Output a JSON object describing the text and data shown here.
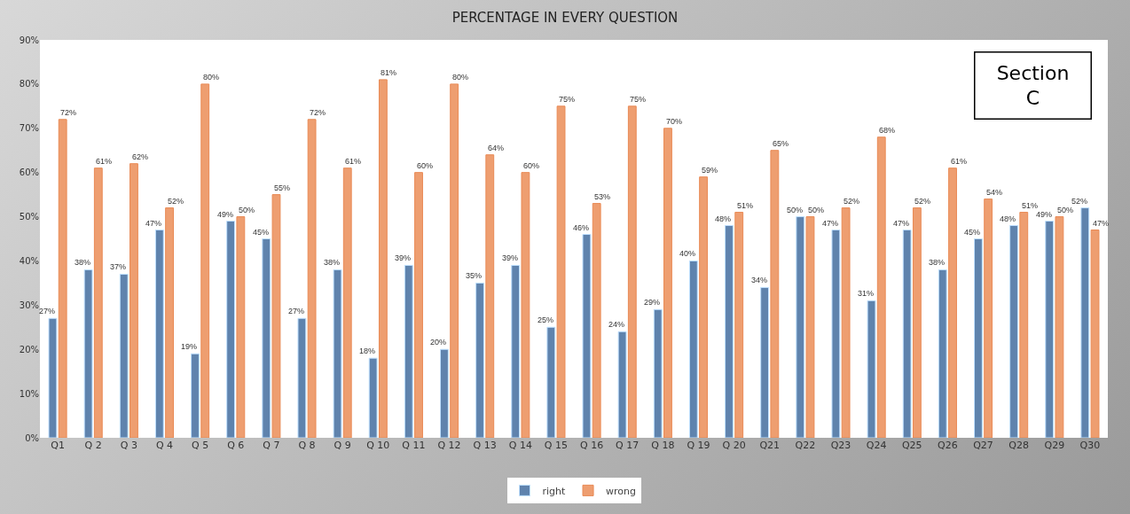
{
  "chart_data": {
    "type": "bar",
    "title": "PERCENTAGE IN EVERY QUESTION",
    "categories": [
      "Q1",
      "Q 2",
      "Q 3",
      "Q 4",
      "Q 5",
      "Q 6",
      "Q 7",
      "Q 8",
      "Q 9",
      "Q 10",
      "Q 11",
      "Q 12",
      "Q 13",
      "Q 14",
      "Q 15",
      "Q 16",
      "Q 17",
      "Q 18",
      "Q 19",
      "Q 20",
      "Q21",
      "Q22",
      "Q23",
      "Q24",
      "Q25",
      "Q26",
      "Q27",
      "Q28",
      "Q29",
      "Q30"
    ],
    "series": [
      {
        "name": "right",
        "color": "#5f83ad",
        "values": [
          27,
          38,
          37,
          47,
          19,
          49,
          45,
          27,
          38,
          18,
          39,
          20,
          35,
          39,
          25,
          46,
          24,
          29,
          40,
          48,
          34,
          50,
          47,
          31,
          47,
          38,
          45,
          48,
          49,
          52
        ],
        "value_labels": [
          "27%",
          "38%",
          "37%",
          "47%",
          "19%",
          "49%",
          "45%",
          "27%",
          "38%",
          "18%",
          "39%",
          "20%",
          "35%",
          "39%",
          "25%",
          "46%",
          "24%",
          "29%",
          "40%",
          "48%",
          "34%",
          "50%",
          "47%",
          "31%",
          "47%",
          "38%",
          "45%",
          "48%",
          "49%",
          "52%"
        ]
      },
      {
        "name": "wrong",
        "color": "#ee9e70",
        "values": [
          72,
          61,
          62,
          52,
          80,
          50,
          55,
          72,
          61,
          81,
          60,
          80,
          64,
          60,
          75,
          53,
          75,
          70,
          59,
          51,
          65,
          50,
          52,
          68,
          52,
          61,
          54,
          51,
          50,
          47
        ],
        "value_labels": [
          "72%",
          "61%",
          "62%",
          "52%",
          "80%",
          "50%",
          "55%",
          "72%",
          "61%",
          "81%",
          "60%",
          "80%",
          "64%",
          "60%",
          "75%",
          "53%",
          "75%",
          "70%",
          "59%",
          "51%",
          "65%",
          "50%",
          "52%",
          "68%",
          "52%",
          "61%",
          "54%",
          "51%",
          "50%",
          "47%"
        ]
      }
    ],
    "ylim": [
      0,
      90
    ],
    "yticks": [
      {
        "value": 0,
        "label": "0%"
      },
      {
        "value": 10,
        "label": "10%"
      },
      {
        "value": 20,
        "label": "20%"
      },
      {
        "value": 30,
        "label": "30%"
      },
      {
        "value": 40,
        "label": "40%"
      },
      {
        "value": 50,
        "label": "50%"
      },
      {
        "value": 60,
        "label": "60%"
      },
      {
        "value": 70,
        "label": "70%"
      },
      {
        "value": 80,
        "label": "80%"
      },
      {
        "value": 90,
        "label": "90%"
      }
    ],
    "annotations": [
      "Section\nC"
    ],
    "legend": "bottom",
    "grid": false
  }
}
